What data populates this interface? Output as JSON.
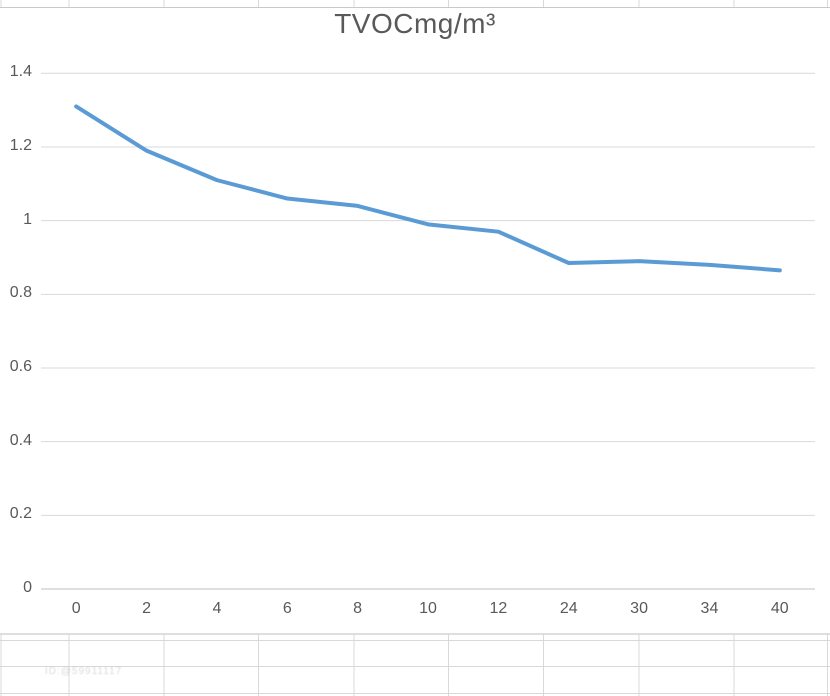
{
  "chart_data": {
    "type": "line",
    "title": "TVOCmg/m³",
    "xlabel": "",
    "ylabel": "",
    "categories": [
      "0",
      "2",
      "4",
      "6",
      "8",
      "10",
      "12",
      "24",
      "30",
      "34",
      "40"
    ],
    "values": [
      1.31,
      1.19,
      1.11,
      1.06,
      1.04,
      0.99,
      0.97,
      0.885,
      0.89,
      0.88,
      0.865
    ],
    "ylim": [
      0,
      1.4
    ],
    "y_tick_labels": [
      "0",
      "0.2",
      "0.4",
      "0.6",
      "0.8",
      "1",
      "1.2",
      "1.4"
    ],
    "y_tick_values": [
      0,
      0.2,
      0.4,
      0.6,
      0.8,
      1,
      1.2,
      1.4
    ],
    "grid": "horizontal",
    "legend": "none"
  },
  "watermark": {
    "text": "ID:@59911117"
  },
  "colors": {
    "series_line": "#5B9BD5",
    "gridline": "#D9D9D9",
    "axis_line": "#BFBFBF",
    "tick_label": "#595959",
    "title": "#595959",
    "sheet_gridline": "#D9D9D9",
    "chart_border": "#C9C9C9"
  }
}
